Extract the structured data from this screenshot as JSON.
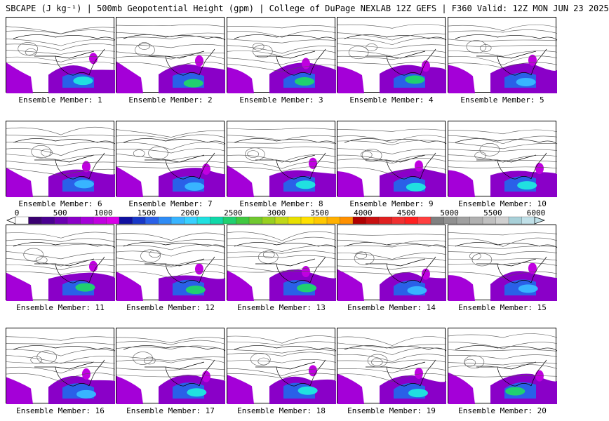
{
  "header": "SBCAPE (J kg⁻¹) | 500mb Geopotential Height (gpm) | College of DuPage NEXLAB 12Z GEFS | F360 Valid: 12Z MON JUN 23 2025",
  "colorbar": {
    "ticks": [
      "0",
      "500",
      "1000",
      "1500",
      "2000",
      "2500",
      "3000",
      "3500",
      "4000",
      "4500",
      "5000",
      "5500",
      "6000"
    ],
    "colors": [
      "#ffffff",
      "#3a0070",
      "#4a0090",
      "#6a00b0",
      "#8a00c8",
      "#a400d8",
      "#c000e0",
      "#d800e8",
      "#1010a0",
      "#1838c8",
      "#2a60e8",
      "#2f8cf5",
      "#38b4ff",
      "#38d0ff",
      "#20e0e0",
      "#10d8a8",
      "#20d070",
      "#40c840",
      "#70c830",
      "#98d020",
      "#c0d818",
      "#e8e000",
      "#ffe000",
      "#ffc800",
      "#ffb000",
      "#ff9000",
      "#b00000",
      "#c81010",
      "#e02020",
      "#f03030",
      "#ff2020",
      "#ff4040",
      "#808080",
      "#909090",
      "#a0a0a0",
      "#b0b0b0",
      "#c0c0c0",
      "#d0d0d0",
      "#a8d0d8",
      "#c0e0e8"
    ]
  },
  "members": [
    {
      "label": "Ensemble Member: 1"
    },
    {
      "label": "Ensemble Member: 2"
    },
    {
      "label": "Ensemble Member: 3"
    },
    {
      "label": "Ensemble Member: 4"
    },
    {
      "label": "Ensemble Member: 5"
    },
    {
      "label": "Ensemble Member: 6"
    },
    {
      "label": "Ensemble Member: 7"
    },
    {
      "label": "Ensemble Member: 8"
    },
    {
      "label": "Ensemble Member: 9"
    },
    {
      "label": "Ensemble Member: 10"
    },
    {
      "label": "Ensemble Member: 11"
    },
    {
      "label": "Ensemble Member: 12"
    },
    {
      "label": "Ensemble Member: 13"
    },
    {
      "label": "Ensemble Member: 14"
    },
    {
      "label": "Ensemble Member: 15"
    },
    {
      "label": "Ensemble Member: 16"
    },
    {
      "label": "Ensemble Member: 17"
    },
    {
      "label": "Ensemble Member: 18"
    },
    {
      "label": "Ensemble Member: 19"
    },
    {
      "label": "Ensemble Member: 20"
    }
  ]
}
